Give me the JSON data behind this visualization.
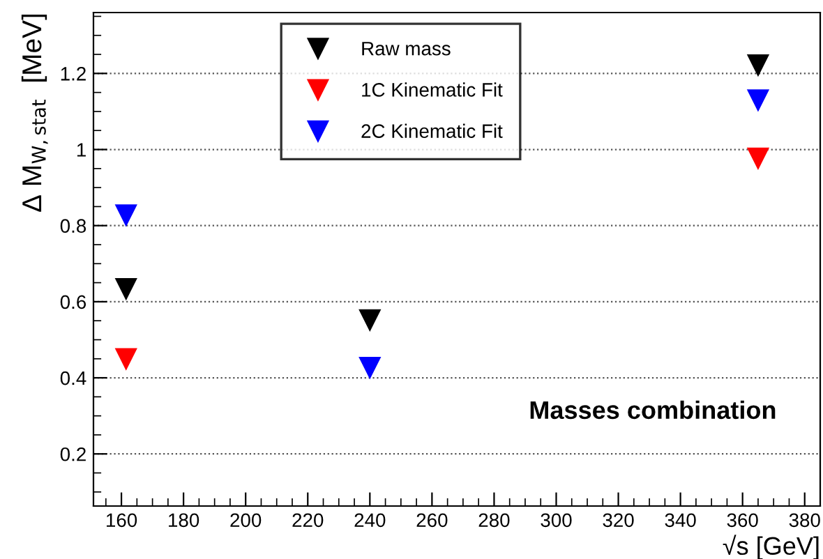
{
  "chart_data": {
    "type": "scatter",
    "xlabel": "√s [GeV]",
    "ylabel": "Δ M$_{W,stat}$  [MeV]",
    "x": [
      161.5,
      240,
      365
    ],
    "series": [
      {
        "name": "Raw mass",
        "color": "#000000",
        "values": [
          0.634,
          0.552,
          1.222
        ]
      },
      {
        "name": "1C Kinematic Fit",
        "color": "#ff0000",
        "values": [
          0.45,
          null,
          0.977
        ]
      },
      {
        "name": "2C Kinematic Fit",
        "color": "#0000ff",
        "values": [
          0.828,
          0.427,
          1.13
        ]
      }
    ],
    "xlim": [
      151,
      385
    ],
    "xticks": [
      160,
      180,
      200,
      220,
      240,
      260,
      280,
      300,
      320,
      340,
      360,
      380
    ],
    "ylim": [
      0.063,
      1.36
    ],
    "yticks": [
      0.2,
      0.4,
      0.6,
      0.8,
      1,
      1.2
    ],
    "grid": "y",
    "legend": "top",
    "marker": "triangle",
    "annotations": [
      "Masses combination"
    ]
  }
}
